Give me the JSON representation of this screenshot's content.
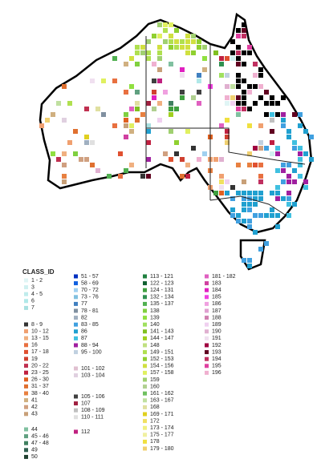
{
  "legend": {
    "title": "CLASS_ID",
    "columns": [
      {
        "groups": [
          [
            {
              "label": "1 - 2",
              "color": "#e0f5f5"
            },
            {
              "label": "3",
              "color": "#d0f0f0"
            },
            {
              "label": "4 - 5",
              "color": "#c0ecec"
            },
            {
              "label": "6",
              "color": "#b0e8e8"
            },
            {
              "label": "7",
              "color": "#a8e0e0"
            }
          ],
          [
            {
              "label": "8 - 9",
              "color": "#333333"
            },
            {
              "label": "10 - 12",
              "color": "#f0a070"
            },
            {
              "label": "13 - 15",
              "color": "#f0b080"
            },
            {
              "label": "16",
              "color": "#e87040"
            },
            {
              "label": "17 - 18",
              "color": "#e05030"
            },
            {
              "label": "19",
              "color": "#d04030"
            },
            {
              "label": "20 - 22",
              "color": "#c03050"
            },
            {
              "label": "23 - 25",
              "color": "#c02040"
            },
            {
              "label": "26 - 30",
              "color": "#e06020"
            },
            {
              "label": "31 - 37",
              "color": "#e07030"
            },
            {
              "label": "38 - 40",
              "color": "#e88040"
            },
            {
              "label": "41",
              "color": "#d0b080"
            },
            {
              "label": "42",
              "color": "#d0a080"
            },
            {
              "label": "43",
              "color": "#c8a078"
            }
          ],
          [
            {
              "label": "44",
              "color": "#80c0a0"
            },
            {
              "label": "45 - 46",
              "color": "#60a080"
            },
            {
              "label": "47 - 48",
              "color": "#408060"
            },
            {
              "label": "49",
              "color": "#306050"
            },
            {
              "label": "50",
              "color": "#204030"
            }
          ]
        ]
      },
      {
        "groups": [
          [
            {
              "label": "51 - 57",
              "color": "#0030c0"
            },
            {
              "label": "58 - 69",
              "color": "#1060e0"
            },
            {
              "label": "70 - 72",
              "color": "#a0d0f0"
            },
            {
              "label": "73 - 76",
              "color": "#80c0e0"
            },
            {
              "label": "77",
              "color": "#4080c0"
            },
            {
              "label": "78 - 81",
              "color": "#8090a0"
            },
            {
              "label": "82",
              "color": "#a0b0c0"
            },
            {
              "label": "83 - 85",
              "color": "#40a0e0"
            },
            {
              "label": "86",
              "color": "#20a0d0"
            },
            {
              "label": "87",
              "color": "#40c0e0"
            },
            {
              "label": "88 - 94",
              "color": "#a020a0"
            },
            {
              "label": "95 - 100",
              "color": "#c0d0e0"
            }
          ],
          [
            {
              "label": "101 - 102",
              "color": "#e0c0d0"
            },
            {
              "label": "103 - 104",
              "color": "#e0d0e0"
            }
          ],
          [
            {
              "label": "105 - 106",
              "color": "#404040"
            },
            {
              "label": "107",
              "color": "#a02040"
            },
            {
              "label": "108 - 109",
              "color": "#c0c0c0"
            },
            {
              "label": "110 - 111",
              "color": "#e0e0e0"
            }
          ],
          [
            {
              "label": "112",
              "color": "#c02080"
            }
          ]
        ]
      },
      {
        "groups": [
          [
            {
              "label": "113 - 121",
              "color": "#208040"
            },
            {
              "label": "122 - 123",
              "color": "#106030"
            },
            {
              "label": "124 - 131",
              "color": "#40a040"
            },
            {
              "label": "132 - 134",
              "color": "#309050"
            },
            {
              "label": "135 - 137",
              "color": "#50b050"
            },
            {
              "label": "138",
              "color": "#80d040"
            },
            {
              "label": "139",
              "color": "#90e040"
            },
            {
              "label": "140",
              "color": "#a0e060"
            },
            {
              "label": "141 - 143",
              "color": "#80c020"
            },
            {
              "label": "144 - 147",
              "color": "#a0d020"
            },
            {
              "label": "148",
              "color": "#c0e080"
            },
            {
              "label": "149 - 151",
              "color": "#b0e050"
            },
            {
              "label": "152 - 153",
              "color": "#90d030"
            },
            {
              "label": "154 - 156",
              "color": "#d0e040"
            },
            {
              "label": "157 - 158",
              "color": "#e0f060"
            },
            {
              "label": "159",
              "color": "#a0d070"
            },
            {
              "label": "160",
              "color": "#b0d090"
            },
            {
              "label": "161 - 162",
              "color": "#70c060"
            },
            {
              "label": "163 - 167",
              "color": "#c0e0a0"
            },
            {
              "label": "168",
              "color": "#e0e0a0"
            },
            {
              "label": "169 - 171",
              "color": "#e0d020"
            },
            {
              "label": "172",
              "color": "#f0e060"
            },
            {
              "label": "173 - 174",
              "color": "#f0f080"
            },
            {
              "label": "175 - 177",
              "color": "#f0f0a0"
            },
            {
              "label": "178",
              "color": "#f0e040"
            },
            {
              "label": "179 - 180",
              "color": "#f0d070"
            }
          ]
        ]
      },
      {
        "groups": [
          [
            {
              "label": "181 - 182",
              "color": "#e060c0"
            },
            {
              "label": "183",
              "color": "#d040a0"
            },
            {
              "label": "184",
              "color": "#e020c0"
            },
            {
              "label": "185",
              "color": "#f040e0"
            },
            {
              "label": "186",
              "color": "#f0a0e0"
            },
            {
              "label": "187",
              "color": "#e0a0d0"
            },
            {
              "label": "188",
              "color": "#d080b0"
            },
            {
              "label": "189",
              "color": "#f0d0f0"
            },
            {
              "label": "190",
              "color": "#e0b0d0"
            },
            {
              "label": "191",
              "color": "#f0e0f0"
            },
            {
              "label": "192",
              "color": "#a00040"
            },
            {
              "label": "193",
              "color": "#600020"
            },
            {
              "label": "194",
              "color": "#c03060"
            },
            {
              "label": "195",
              "color": "#e040a0"
            },
            {
              "label": "196",
              "color": "#f0b0d0"
            }
          ]
        ]
      }
    ]
  }
}
